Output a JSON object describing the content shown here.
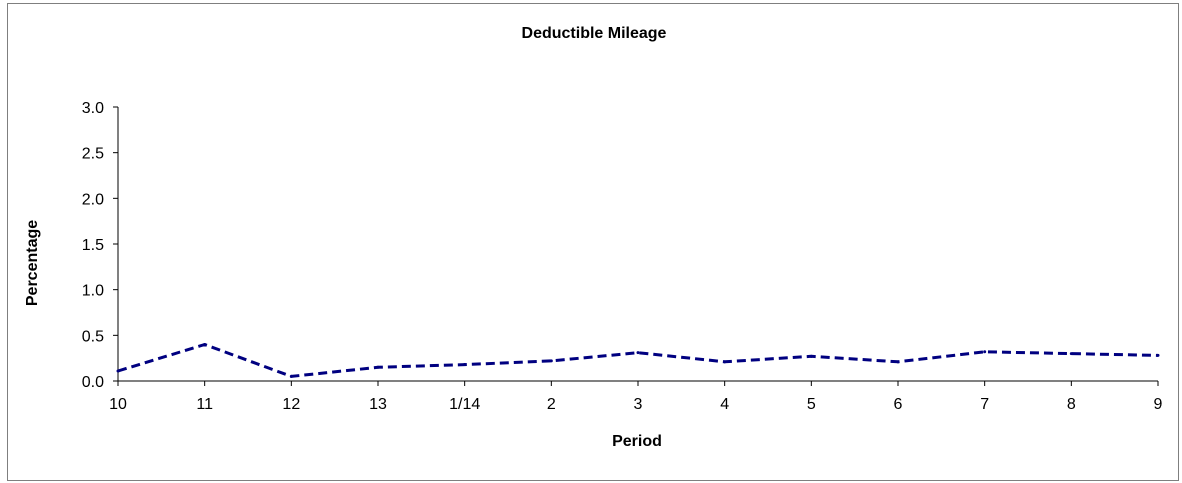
{
  "chart_data": {
    "type": "line",
    "title": "Deductible Mileage",
    "xlabel": "Period",
    "ylabel": "Percentage",
    "categories": [
      "10",
      "11",
      "12",
      "13",
      "1/14",
      "2",
      "3",
      "4",
      "5",
      "6",
      "7",
      "8",
      "9"
    ],
    "series": [
      {
        "values": [
          0.11,
          0.4,
          0.05,
          0.15,
          0.18,
          0.22,
          0.31,
          0.21,
          0.27,
          0.21,
          0.32,
          0.3,
          0.28
        ],
        "color": "#000080",
        "line_style": "dashed"
      }
    ],
    "ylim": [
      0,
      3.0
    ],
    "yticks": [
      "0.0",
      "0.5",
      "1.0",
      "1.5",
      "2.0",
      "2.5",
      "3.0"
    ],
    "grid": false,
    "legend": "none"
  }
}
